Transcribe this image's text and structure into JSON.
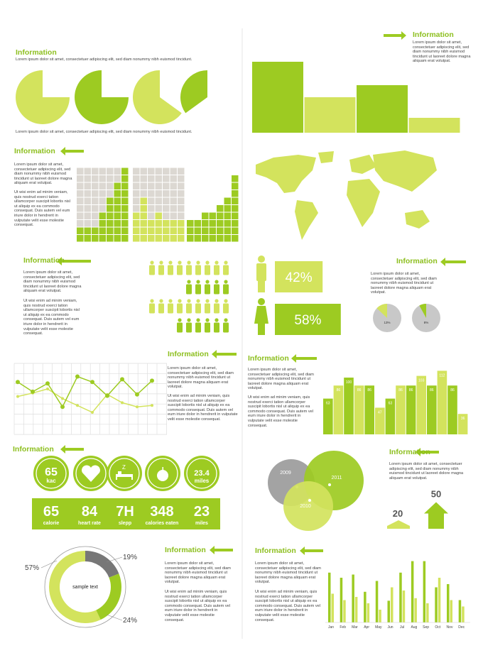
{
  "palette": {
    "light": "#d3e35d",
    "dark": "#9dcb22",
    "gray": "#a9a9a9"
  },
  "pies": {
    "title": "Information",
    "subtitle": "Lorem ipsum dolor sit amet, consectetuer adipiscing elit, sed diam nonummy nibh euismod tincidunt.",
    "values": [
      75,
      75,
      65,
      35
    ],
    "caption": "Lorem ipsum dolor sit amet, consectetuer adipiscing elit, sed diam nonummy nibh euismod tincidunt."
  },
  "top_bars": {
    "title": "Information",
    "text": "Lorem ipsum dolor sit amet, consectetuer adipiscing elit, sed diam nonummy nibh euismod tincidunt ut laoreet dolore magna aliquam erat volutpat.",
    "values": [
      100,
      50,
      67,
      21
    ]
  },
  "grid_chart": {
    "title": "Information",
    "text1": "Lorem ipsum dolor sit amet, consectetuer adipiscing elit, sed diam nonummy nibh euismod tincidunt ut laoreet dolore magna aliquam erat volutpat.",
    "text2": "Ut wisi enim ad minim veniam, quis nostrud exerci tation ullamcorper suscipit lobortis nisl ut aliquip ex ea commodo consequat. Duis autem vel eum iriure dolor in hendrerit in vulputate velit esse molestie consequat.",
    "grids": [
      [
        2,
        2,
        2,
        4,
        6,
        8,
        10
      ],
      [
        4,
        6,
        3,
        4,
        3,
        3,
        3
      ],
      [
        3,
        3,
        4,
        4,
        5,
        6,
        9
      ]
    ]
  },
  "people": {
    "title": "Information",
    "text1": "Lorem ipsum dolor sit amet, consectetuer adipiscing elit, sed diam nonummy nibh euismod tincidunt ut laoreet dolore magna aliquam erat volutpat.",
    "text2": "Ut wisi enim ad minim veniam, quis nostrud exerci tation ullamcorper suscipit lobortis nisl ut aliquip ex ea commodo consequat. Duis autem vel eum iriure dolor in hendrerit in vulputate velit esse molestie consequat.",
    "rows": [
      9,
      5,
      9,
      6
    ]
  },
  "gender": {
    "values": [
      42,
      58
    ],
    "value_labels": [
      "42%",
      "58%"
    ]
  },
  "small_pies": {
    "title": "Information",
    "text": "Lorem ipsum dolor sit amet, consectetuer adipiscing elit, sed diam nonummy nibh euismod tincidunt ut laoreet dolore magna aliquam erat volutpat.",
    "values": [
      13,
      8
    ],
    "value_labels": [
      "13%",
      "8%"
    ]
  },
  "line_chart": {
    "title": "Information",
    "text1": "Lorem ipsum dolor sit amet, consectetuer adipiscing elit, sed diam nonummy nibh euismod tincidunt ut laoreet dolore magna aliquam erat volutpat.",
    "text2": "Ut wisi enim ad minim veniam, quis nostrud exerci tation ullamcorper suscipit lobortis nisl ut aliquip ex ea commodo consequat. Duis autem vel eum iriure dolor in hendrerit in vulputate velit esse molestie consequat.",
    "series": [
      {
        "values": [
          55,
          60,
          66,
          52,
          42,
          32,
          58,
          46,
          40,
          42
        ]
      },
      {
        "values": [
          76,
          62,
          74,
          40,
          84,
          76,
          56,
          80,
          58,
          78
        ]
      }
    ]
  },
  "bar_chart": {
    "title": "Information",
    "text1": "Lorem ipsum dolor sit amet, consectetuer adipiscing elit, sed diam nonummy nibh euismod tincidunt ut laoreet dolore magna aliquam erat volutpat.",
    "text2": "Ut wisi enim ad minim veniam, quis nostrud exerci tation ullamcorper suscipit lobortis nisl ut aliquip ex ea commodo consequat. Duis autem vel eum iriure dolor in hendrerit in vulputate velit esse molestie consequat.",
    "values": [
      63,
      86,
      100,
      86,
      86,
      47,
      63,
      86,
      86,
      103,
      86,
      112,
      86,
      36
    ]
  },
  "stats": {
    "title": "Information",
    "circles": [
      {
        "value": 65,
        "unit": "kac"
      },
      {
        "value": 23.4,
        "unit": "miles"
      }
    ],
    "items": [
      {
        "value": 65,
        "label": "calorie"
      },
      {
        "value": 84,
        "label": "heart rate"
      },
      {
        "value": "7H",
        "label": "slepp"
      },
      {
        "value": 348,
        "label": "calories eaten"
      },
      {
        "value": 23,
        "label": "miles"
      }
    ]
  },
  "venn": {
    "labels": [
      "2009",
      "2011",
      "2010"
    ]
  },
  "growth": {
    "title": "Information",
    "text": "Lorem ipsum dolor sit amet, consectetuer adipiscing elit, sed diam nonummy nibh euismod tincidunt ut laoreet dolore magna aliquam erat volutpat.",
    "values": [
      20,
      50
    ]
  },
  "donut": {
    "center": "sample text",
    "values": [
      57,
      19,
      24
    ],
    "value_labels": [
      "57%",
      "19%",
      "24%"
    ]
  },
  "donut_text": {
    "title": "Information",
    "text1": "Lorem ipsum dolor sit amet, consectetuer adipiscing elit, sed diam nonummy nibh euismod tincidunt ut laoreet dolore magna aliquam erat volutpat.",
    "text2": "Ut wisi enim ad minim veniam, quis nostrud exerci tation ullamcorper suscipit lobortis nisl ut aliquip ex ea commodo consequat. Duis autem vel eum iriure dolor in hendrerit in vulputate velit esse molestie consequat."
  },
  "monthly": {
    "title": "Information",
    "text1": "Lorem ipsum dolor sit amet, consectetuer adipiscing elit, sed diam nonummy nibh euismod tincidunt ut laoreet dolore magna aliquam erat volutpat.",
    "text2": "Ut wisi enim ad minim veniam, quis nostrud exerci tation ullamcorper suscipit lobortis nisl ut aliquip ex ea commodo consequat. Duis autem vel eum iriure dolor in hendrerit in vulputate velit esse molestie consequat.",
    "categories": [
      "Jan",
      "Feb",
      "Mar",
      "Apr",
      "May",
      "Jun",
      "Jul",
      "Aug",
      "Sep",
      "Oct",
      "Nov",
      "Dec"
    ],
    "series": [
      {
        "values": [
          78,
          70,
          75,
          48,
          65,
          34,
          78,
          96,
          96,
          55,
          60,
          35
        ]
      },
      {
        "values": [
          45,
          35,
          40,
          30,
          20,
          55,
          50,
          38,
          30,
          70,
          35,
          25
        ]
      }
    ]
  }
}
